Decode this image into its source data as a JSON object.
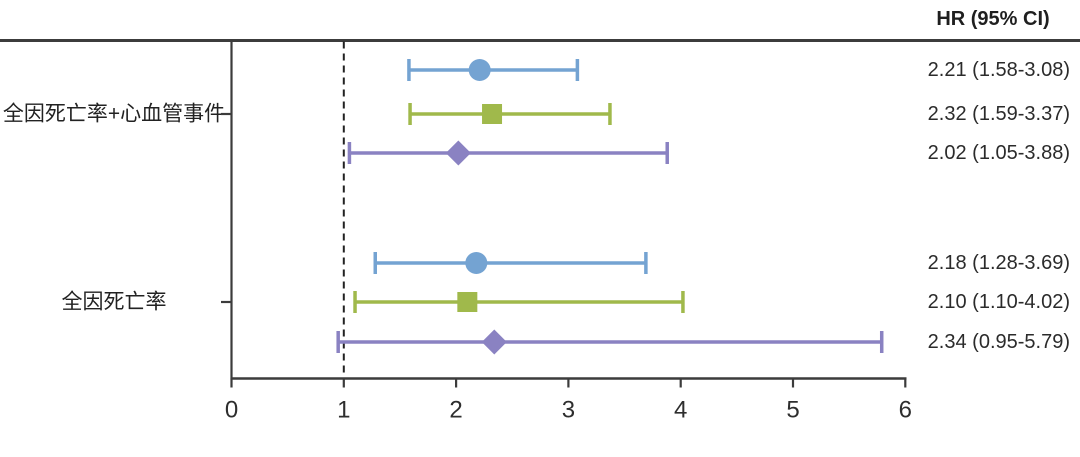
{
  "header": {
    "hr_column_label": "HR (95% CI)"
  },
  "chart_data": {
    "type": "forest",
    "title": "",
    "xlabel": "",
    "ylabel": "",
    "xlim": [
      0,
      6
    ],
    "x_ticks": [
      0,
      1,
      2,
      3,
      4,
      5,
      6
    ],
    "reference_line": 1,
    "grid": false,
    "legend_position": "none",
    "colors": {
      "blue": "#74a3d2",
      "green": "#a0b94b",
      "purple": "#8a82c2",
      "axis": "#3c3c3c",
      "reference": "#222222"
    },
    "groups": [
      {
        "label": "全因死亡率+心血管事件",
        "rows": [
          {
            "marker": "circle",
            "color": "blue",
            "hr": 2.21,
            "ci_low": 1.58,
            "ci_high": 3.08,
            "label": "2.21 (1.58-3.08)"
          },
          {
            "marker": "square",
            "color": "green",
            "hr": 2.32,
            "ci_low": 1.59,
            "ci_high": 3.37,
            "label": "2.32 (1.59-3.37)"
          },
          {
            "marker": "diamond",
            "color": "purple",
            "hr": 2.02,
            "ci_low": 1.05,
            "ci_high": 3.88,
            "label": "2.02 (1.05-3.88)"
          }
        ]
      },
      {
        "label": "全因死亡率",
        "rows": [
          {
            "marker": "circle",
            "color": "blue",
            "hr": 2.18,
            "ci_low": 1.28,
            "ci_high": 3.69,
            "label": "2.18 (1.28-3.69)"
          },
          {
            "marker": "square",
            "color": "green",
            "hr": 2.1,
            "ci_low": 1.1,
            "ci_high": 4.02,
            "label": "2.10 (1.10-4.02)"
          },
          {
            "marker": "diamond",
            "color": "purple",
            "hr": 2.34,
            "ci_low": 0.95,
            "ci_high": 5.79,
            "label": "2.34 (0.95-5.79)"
          }
        ]
      }
    ]
  }
}
